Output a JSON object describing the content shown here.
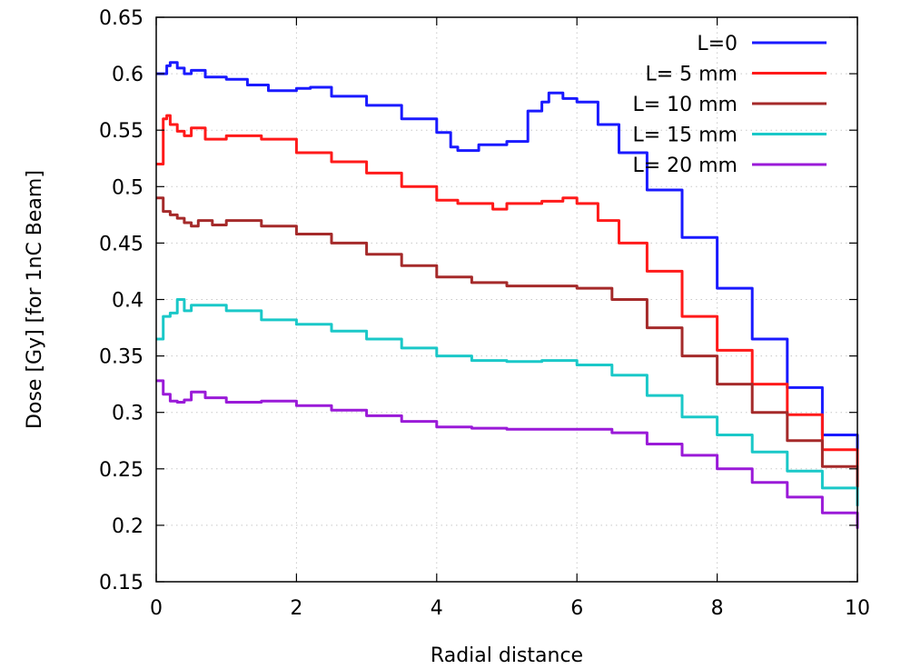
{
  "chart_data": {
    "type": "line",
    "title": "",
    "xlabel": "Radial distance",
    "ylabel": "Dose [Gy] [for 1nC Beam]",
    "xlim": [
      0,
      10
    ],
    "ylim": [
      0.15,
      0.65
    ],
    "xticks": [
      0,
      2,
      4,
      6,
      8,
      10
    ],
    "yticks": [
      0.15,
      0.2,
      0.25,
      0.3,
      0.35,
      0.4,
      0.45,
      0.5,
      0.55,
      0.6,
      0.65
    ],
    "grid": true,
    "legend_position": "top-right",
    "series": [
      {
        "name": "L=0",
        "color": "#1a1aff",
        "x": [
          0,
          0.1,
          0.15,
          0.2,
          0.3,
          0.4,
          0.5,
          0.7,
          1.0,
          1.3,
          1.6,
          2.0,
          2.2,
          2.5,
          3.0,
          3.5,
          4.0,
          4.2,
          4.3,
          4.6,
          5.0,
          5.3,
          5.5,
          5.6,
          5.8,
          6.0,
          6.3,
          6.6,
          7.0,
          7.5,
          8.0,
          8.5,
          9.0,
          9.5,
          10.0
        ],
        "y": [
          0.6,
          0.6,
          0.607,
          0.61,
          0.605,
          0.6,
          0.603,
          0.597,
          0.595,
          0.59,
          0.585,
          0.587,
          0.588,
          0.58,
          0.572,
          0.56,
          0.548,
          0.535,
          0.532,
          0.537,
          0.54,
          0.567,
          0.575,
          0.583,
          0.578,
          0.575,
          0.555,
          0.53,
          0.497,
          0.455,
          0.41,
          0.365,
          0.322,
          0.28,
          0.235
        ]
      },
      {
        "name": "L= 5 mm",
        "color": "#ff1a1a",
        "x": [
          0,
          0.07,
          0.1,
          0.15,
          0.2,
          0.3,
          0.4,
          0.5,
          0.7,
          1.0,
          1.5,
          2.0,
          2.5,
          3.0,
          3.5,
          4.0,
          4.3,
          4.8,
          5.0,
          5.5,
          5.8,
          6.0,
          6.3,
          6.6,
          7.0,
          7.5,
          8.0,
          8.5,
          9.0,
          9.5,
          10.0
        ],
        "y": [
          0.52,
          0.52,
          0.56,
          0.563,
          0.555,
          0.549,
          0.545,
          0.552,
          0.542,
          0.545,
          0.542,
          0.53,
          0.522,
          0.512,
          0.5,
          0.488,
          0.485,
          0.48,
          0.485,
          0.487,
          0.49,
          0.485,
          0.47,
          0.45,
          0.425,
          0.385,
          0.355,
          0.325,
          0.298,
          0.267,
          0.237
        ]
      },
      {
        "name": "L= 10 mm",
        "color": "#a52a2a",
        "x": [
          0,
          0.1,
          0.2,
          0.3,
          0.4,
          0.5,
          0.6,
          0.8,
          1.0,
          1.5,
          2.0,
          2.5,
          3.0,
          3.5,
          4.0,
          4.5,
          5.0,
          5.5,
          6.0,
          6.5,
          7.0,
          7.5,
          8.0,
          8.5,
          9.0,
          9.5,
          10.0
        ],
        "y": [
          0.49,
          0.478,
          0.475,
          0.472,
          0.468,
          0.465,
          0.47,
          0.466,
          0.47,
          0.465,
          0.458,
          0.45,
          0.44,
          0.43,
          0.42,
          0.415,
          0.412,
          0.412,
          0.41,
          0.4,
          0.375,
          0.35,
          0.325,
          0.3,
          0.275,
          0.252,
          0.228
        ]
      },
      {
        "name": "L= 15 mm",
        "color": "#1ac8c8",
        "x": [
          0,
          0.07,
          0.1,
          0.2,
          0.3,
          0.4,
          0.5,
          0.7,
          1.0,
          1.5,
          2.0,
          2.5,
          3.0,
          3.5,
          4.0,
          4.5,
          5.0,
          5.5,
          6.0,
          6.5,
          7.0,
          7.5,
          8.0,
          8.5,
          9.0,
          9.5,
          10.0
        ],
        "y": [
          0.365,
          0.365,
          0.385,
          0.388,
          0.4,
          0.39,
          0.395,
          0.395,
          0.39,
          0.382,
          0.378,
          0.372,
          0.365,
          0.357,
          0.35,
          0.346,
          0.345,
          0.346,
          0.342,
          0.333,
          0.315,
          0.296,
          0.28,
          0.265,
          0.248,
          0.233,
          0.217
        ]
      },
      {
        "name": "L= 20 mm",
        "color": "#9a1ad8",
        "x": [
          0,
          0.1,
          0.2,
          0.3,
          0.4,
          0.5,
          0.7,
          1.0,
          1.5,
          2.0,
          2.5,
          3.0,
          3.5,
          4.0,
          4.5,
          5.0,
          5.5,
          6.0,
          6.5,
          7.0,
          7.5,
          8.0,
          8.5,
          9.0,
          9.5,
          10.0
        ],
        "y": [
          0.328,
          0.316,
          0.31,
          0.309,
          0.311,
          0.318,
          0.313,
          0.309,
          0.31,
          0.306,
          0.302,
          0.297,
          0.292,
          0.287,
          0.286,
          0.285,
          0.285,
          0.285,
          0.282,
          0.272,
          0.262,
          0.25,
          0.238,
          0.225,
          0.211,
          0.197
        ]
      }
    ]
  }
}
